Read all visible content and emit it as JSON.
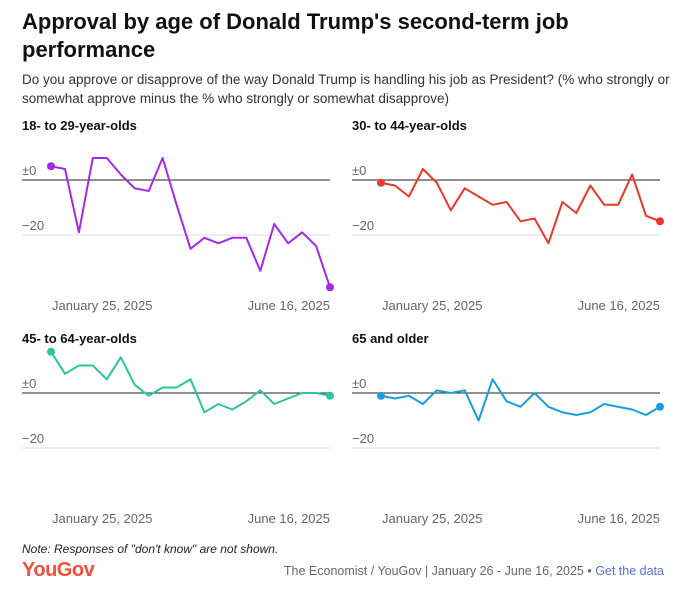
{
  "title": "Approval by age of Donald Trump's second-term job performance",
  "subtitle": "Do you approve or disapprove of the way Donald Trump is handling his job as President? (% who strongly or somewhat approve minus the % who strongly or somewhat disapprove)",
  "note": "Note: Responses of \"don't know\" are not shown.",
  "logo": "YouGov",
  "footer": {
    "source": "The Economist / YouGov | January 26 - June 16, 2025 •",
    "link": "Get the data"
  },
  "chart_data": [
    {
      "type": "line",
      "title": "18- to 29-year-olds",
      "color": "#a22be8",
      "categories": [
        "January 25, 2025",
        null,
        null,
        null,
        null,
        null,
        null,
        null,
        null,
        null,
        null,
        null,
        null,
        null,
        null,
        null,
        null,
        null,
        null,
        null,
        "June 16, 2025"
      ],
      "values": [
        5,
        4,
        -19,
        8,
        8,
        2,
        -3,
        -4,
        8,
        -9,
        -25,
        -21,
        -23,
        -21,
        -21,
        -33,
        -16,
        -23,
        -19,
        -24,
        -39
      ],
      "ylim": [
        -40,
        16
      ],
      "yticks": [
        {
          "value": 0,
          "label": "±0"
        },
        {
          "value": -20,
          "label": "−20"
        }
      ]
    },
    {
      "type": "line",
      "title": "30- to 44-year-olds",
      "color": "#e8392a",
      "categories": [
        "January 25, 2025",
        null,
        null,
        null,
        null,
        null,
        null,
        null,
        null,
        null,
        null,
        null,
        null,
        null,
        null,
        null,
        null,
        null,
        null,
        null,
        "June 16, 2025"
      ],
      "values": [
        -1,
        -2,
        -6,
        4,
        -1,
        -11,
        -3,
        -6,
        -9,
        -8,
        -15,
        -14,
        -23,
        -8,
        -12,
        -2,
        -9,
        -9,
        2,
        -13,
        -15
      ],
      "ylim": [
        -40,
        16
      ],
      "yticks": [
        {
          "value": 0,
          "label": "±0"
        },
        {
          "value": -20,
          "label": "−20"
        }
      ]
    },
    {
      "type": "line",
      "title": "45- to 64-year-olds",
      "color": "#2ec4a0",
      "categories": [
        "January 25, 2025",
        null,
        null,
        null,
        null,
        null,
        null,
        null,
        null,
        null,
        null,
        null,
        null,
        null,
        null,
        null,
        null,
        null,
        null,
        null,
        "June 16, 2025"
      ],
      "values": [
        15,
        7,
        10,
        10,
        5,
        13,
        3,
        -1,
        2,
        2,
        5,
        -7,
        -4,
        -6,
        -3,
        1,
        -4,
        -2,
        0,
        0,
        -1
      ],
      "ylim": [
        -40,
        16
      ],
      "yticks": [
        {
          "value": 0,
          "label": "±0"
        },
        {
          "value": -20,
          "label": "−20"
        }
      ]
    },
    {
      "type": "line",
      "title": "65 and older",
      "color": "#1a9de0",
      "categories": [
        "January 25, 2025",
        null,
        null,
        null,
        null,
        null,
        null,
        null,
        null,
        null,
        null,
        null,
        null,
        null,
        null,
        null,
        null,
        null,
        null,
        null,
        "June 16, 2025"
      ],
      "values": [
        -1,
        -2,
        -1,
        -4,
        1,
        0,
        1,
        -10,
        5,
        -3,
        -5,
        0,
        -5,
        -7,
        -8,
        -7,
        -4,
        -5,
        -6,
        -8,
        -5
      ],
      "ylim": [
        -40,
        16
      ],
      "yticks": [
        {
          "value": 0,
          "label": "±0"
        },
        {
          "value": -20,
          "label": "−20"
        }
      ]
    }
  ]
}
